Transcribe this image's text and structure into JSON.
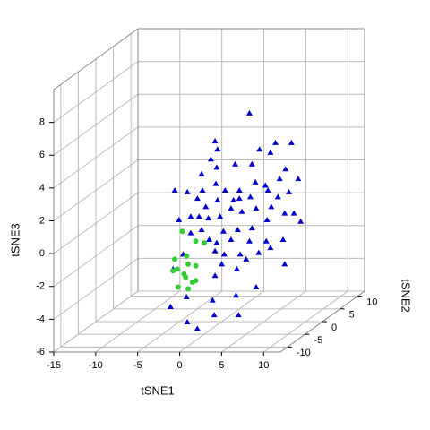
{
  "chart_data": {
    "type": "scatter3d",
    "xlabel": "tSNE1",
    "ylabel": "tSNE2",
    "zlabel": "tSNE3",
    "xlim": [
      -15,
      12
    ],
    "ylim": [
      -12,
      12
    ],
    "zlim": [
      -6,
      10
    ],
    "xticks": [
      -15,
      -10,
      -5,
      0,
      5,
      10
    ],
    "yticks": [
      -10,
      -5,
      0,
      5,
      10
    ],
    "zticks": [
      -6,
      -4,
      -2,
      0,
      2,
      4,
      6,
      8
    ],
    "grid": true,
    "series": [
      {
        "color": "#0000cd",
        "marker": "triangle",
        "x": [
          3.3,
          -0.8,
          -0.5,
          6.4,
          8.3,
          4.5,
          5.8,
          -1.3,
          1.6,
          3.6,
          7.6,
          9.1,
          6.9,
          -2.4,
          -0.6,
          -5.6,
          -4.1,
          -2.3,
          -0.7,
          0.4,
          2.1,
          4.0,
          5.2,
          5.5,
          8.0,
          -1.9,
          -2.9,
          -0.5,
          1.4,
          2.1,
          3.4,
          6.7,
          -5.1,
          -3.7,
          -2.7,
          -1.6,
          -0.2,
          1.1,
          2.4,
          4.1,
          5.9,
          7.5,
          8.6,
          -2.4,
          0.2,
          1.9,
          3.6,
          5.4,
          9.4,
          -1.5,
          -0.6,
          1.1,
          3.3,
          5.3,
          7.3,
          -0.8,
          0.3,
          2.2,
          4.4,
          5.8,
          0.0,
          1.8,
          2.9,
          7.5,
          -0.8,
          4.1,
          1.7,
          -1.1,
          -4.2,
          -6.1,
          -0.9,
          2.0,
          -1.6,
          -0.4,
          -4.6,
          -5.8,
          -3.7
        ],
        "y": [
          0,
          0,
          0,
          0,
          0,
          0,
          0,
          0,
          0,
          0,
          0,
          0,
          0,
          0,
          0,
          0,
          0,
          0,
          0,
          0,
          0,
          0,
          0,
          0,
          0,
          0,
          0,
          0,
          0,
          0,
          0,
          0,
          0,
          0,
          0,
          0,
          0,
          0,
          0,
          0,
          0,
          0,
          0,
          0,
          0,
          0,
          0,
          0,
          0,
          0,
          0,
          0,
          0,
          0,
          0,
          0,
          0,
          0,
          0,
          0,
          0,
          0,
          0,
          0,
          0,
          0,
          0,
          0,
          0,
          0,
          0,
          0,
          -6,
          -6,
          0,
          0,
          0
        ],
        "z": [
          6.7,
          5.0,
          4.5,
          4.9,
          4.9,
          4.5,
          4.3,
          3.9,
          3.6,
          3.6,
          3.3,
          2.7,
          2.7,
          3.0,
          3.4,
          2.0,
          1.9,
          2.0,
          2.4,
          2.0,
          2.0,
          2.5,
          2.3,
          2.0,
          1.9,
          1.0,
          1.5,
          1.4,
          1.4,
          1.5,
          1.6,
          1.6,
          0.2,
          0.4,
          0.4,
          0.3,
          0.4,
          0.9,
          0.7,
          0.9,
          1.0,
          0.6,
          0.6,
          -0.4,
          -0.5,
          -0.4,
          -0.3,
          0.2,
          0.1,
          -1.0,
          -1.2,
          -1.0,
          -1.1,
          -1.1,
          -1.0,
          -1.7,
          -1.9,
          -1.9,
          -1.8,
          -1.5,
          -2.5,
          -2.8,
          -2.2,
          -2.5,
          -3.2,
          -3.9,
          -4.4,
          -4.7,
          -4.5,
          -5.1,
          -5.6,
          -5.6,
          -5.1,
          -5.5,
          -1.9,
          -2.8,
          -0.6
        ]
      },
      {
        "color": "#33cc33",
        "marker": "circle",
        "x": [
          -4.7,
          -3.1,
          -2.1,
          -5.6,
          -4.2,
          -4.0,
          -3.1,
          -5.3,
          -5.8,
          -4.5,
          -4.3,
          -5.2,
          -3.5,
          -3.1,
          -4.0
        ],
        "y": [
          0,
          0,
          0,
          0,
          0,
          0,
          0,
          0,
          0,
          0,
          0,
          0,
          0,
          0,
          0
        ],
        "z": [
          -0.5,
          -1.1,
          -1.2,
          -2.2,
          -2.0,
          -2.5,
          -2.6,
          -2.8,
          -2.9,
          -3.1,
          -3.3,
          -3.9,
          -3.6,
          -3.5,
          -4.0
        ]
      }
    ]
  }
}
